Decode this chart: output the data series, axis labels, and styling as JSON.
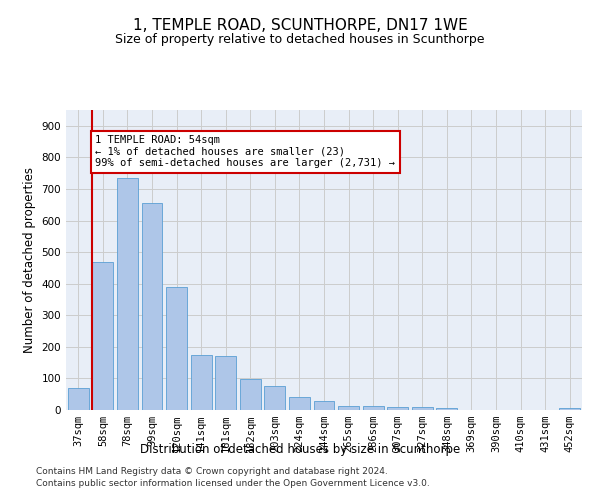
{
  "title": "1, TEMPLE ROAD, SCUNTHORPE, DN17 1WE",
  "subtitle": "Size of property relative to detached houses in Scunthorpe",
  "xlabel": "Distribution of detached houses by size in Scunthorpe",
  "ylabel": "Number of detached properties",
  "categories": [
    "37sqm",
    "58sqm",
    "78sqm",
    "99sqm",
    "120sqm",
    "141sqm",
    "161sqm",
    "182sqm",
    "203sqm",
    "224sqm",
    "244sqm",
    "265sqm",
    "286sqm",
    "307sqm",
    "327sqm",
    "348sqm",
    "369sqm",
    "390sqm",
    "410sqm",
    "431sqm",
    "452sqm"
  ],
  "values": [
    70,
    470,
    735,
    655,
    390,
    175,
    172,
    98,
    75,
    42,
    28,
    12,
    12,
    8,
    8,
    5,
    0,
    0,
    0,
    0,
    7
  ],
  "bar_color": "#aec6e8",
  "bar_edge_color": "#5a9fd4",
  "highlight_line_color": "#cc0000",
  "annotation_text": "1 TEMPLE ROAD: 54sqm\n← 1% of detached houses are smaller (23)\n99% of semi-detached houses are larger (2,731) →",
  "annotation_box_color": "#ffffff",
  "annotation_box_edge_color": "#cc0000",
  "ylim": [
    0,
    950
  ],
  "yticks": [
    0,
    100,
    200,
    300,
    400,
    500,
    600,
    700,
    800,
    900
  ],
  "grid_color": "#cccccc",
  "bg_color": "#e8eef7",
  "footer_line1": "Contains HM Land Registry data © Crown copyright and database right 2024.",
  "footer_line2": "Contains public sector information licensed under the Open Government Licence v3.0.",
  "title_fontsize": 11,
  "subtitle_fontsize": 9,
  "axis_label_fontsize": 8.5,
  "tick_fontsize": 7.5,
  "annotation_fontsize": 7.5,
  "footer_fontsize": 6.5
}
